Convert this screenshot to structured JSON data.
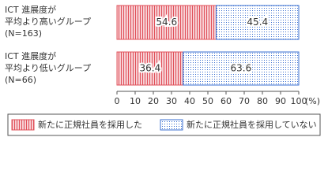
{
  "chart_data": {
    "type": "bar",
    "orientation": "horizontal",
    "stacked": true,
    "categories": [
      [
        "ICT 進展度が",
        "平均より高いグループ",
        "(N=163)"
      ],
      [
        "ICT 進展度が",
        "平均より低いグループ",
        "(N=66)"
      ]
    ],
    "series": [
      {
        "name": "新たに正規社員を採用した",
        "color": "#e0505a",
        "values": [
          54.6,
          36.4
        ]
      },
      {
        "name": "新たに正規社員を採用していない",
        "color": "#3a6fd0",
        "values": [
          45.4,
          63.6
        ]
      }
    ],
    "xlim": [
      0,
      100
    ],
    "xticks": [
      0,
      10,
      20,
      30,
      40,
      50,
      60,
      70,
      80,
      90,
      100
    ],
    "x_unit": "(%)",
    "legend": "bottom"
  }
}
